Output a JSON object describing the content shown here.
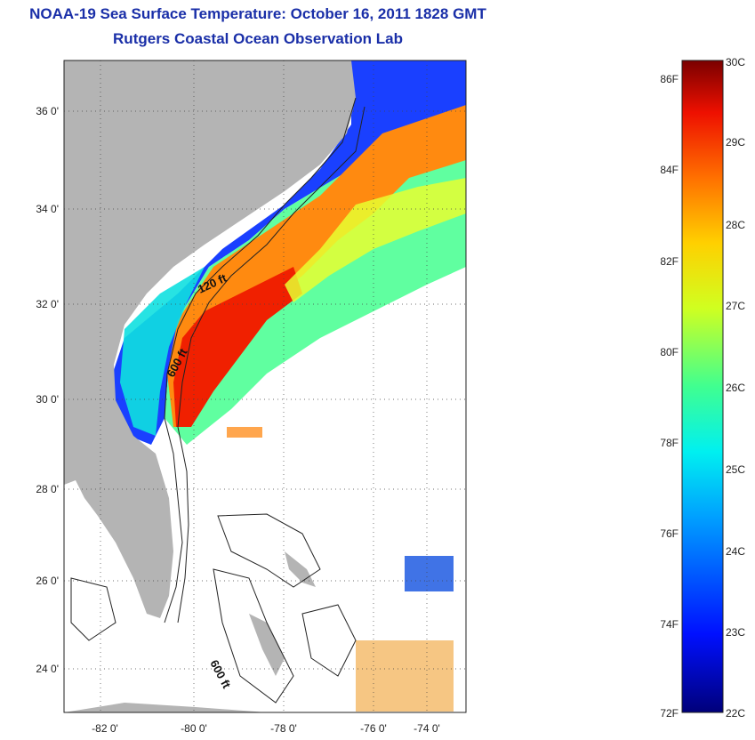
{
  "title": "NOAA-19 Sea Surface Temperature:  October 16, 2011 1828 GMT",
  "subtitle": "Rutgers Coastal Ocean Observation Lab",
  "map": {
    "lat_ticks": [
      "36 0'",
      "34 0'",
      "32 0'",
      "30 0'",
      "28 0'",
      "26 0'",
      "24 0'"
    ],
    "lon_ticks": [
      "-82 0'",
      "-80 0'",
      "-78 0'",
      "-76 0'",
      "-74 0'"
    ],
    "contour_labels": [
      "120 ft",
      "600 ft",
      "600 ft"
    ],
    "colors": {
      "land": "#b4b4b4",
      "background": "#ffffff"
    }
  },
  "colorbar": {
    "fahrenheit": [
      "86F",
      "84F",
      "82F",
      "80F",
      "78F",
      "76F",
      "74F",
      "72F"
    ],
    "celsius": [
      "30C",
      "29C",
      "28C",
      "27C",
      "26C",
      "25C",
      "24C",
      "23C",
      "22C"
    ],
    "range_c": [
      22,
      30
    ]
  }
}
